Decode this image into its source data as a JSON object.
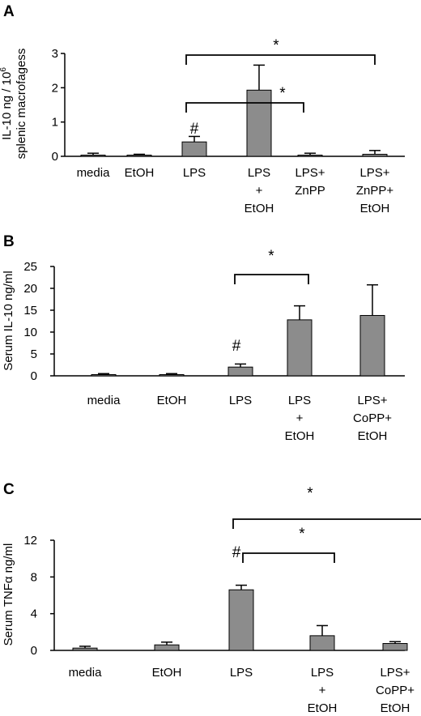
{
  "colors": {
    "bar": "#8c8c8c",
    "ink": "#000000",
    "background": "#ffffff"
  },
  "chart_data": [
    {
      "panel": "A",
      "type": "bar",
      "ylabel": [
        "IL-10  ng / 10",
        "6",
        "splenic macrofagess"
      ],
      "ylim": [
        0,
        3
      ],
      "yticks": [
        "0",
        "1",
        "2",
        "3"
      ],
      "categories": [
        [
          "media"
        ],
        [
          "EtOH"
        ],
        [
          "LPS"
        ],
        [
          "LPS",
          "+",
          "EtOH"
        ],
        [
          "LPS+",
          "ZnPP"
        ],
        [
          "LPS+",
          "ZnPP+",
          "EtOH"
        ]
      ],
      "values": [
        0.03,
        0.03,
        0.42,
        1.93,
        0.03,
        0.06
      ],
      "errors": [
        0.06,
        0.03,
        0.16,
        0.73,
        0.06,
        0.11
      ],
      "markers": [
        {
          "text": "#",
          "index": 2
        }
      ],
      "significance": [
        {
          "label": "*",
          "from": 2,
          "to": 5
        },
        {
          "label": "*",
          "from": 2,
          "to": 4
        }
      ]
    },
    {
      "panel": "B",
      "type": "bar",
      "ylabel": [
        "Serum IL-10 ng/ml"
      ],
      "ylim": [
        0,
        25
      ],
      "yticks": [
        "0",
        "5",
        "10",
        "15",
        "20",
        "25"
      ],
      "categories": [
        [
          "media"
        ],
        [
          "EtOH"
        ],
        [
          "LPS"
        ],
        [
          "LPS",
          "+",
          "EtOH"
        ],
        [
          "LPS+",
          "CoPP+",
          "EtOH"
        ]
      ],
      "values": [
        0,
        0,
        2,
        12.8,
        13.8
      ],
      "errors": [
        0.5,
        0.5,
        0.7,
        3.2,
        7.0
      ],
      "markers": [
        {
          "text": "#",
          "index": 2
        }
      ],
      "significance": [
        {
          "label": "*",
          "from": 2,
          "to": 3
        }
      ]
    },
    {
      "panel": "C",
      "type": "bar",
      "ylabel": [
        "Serum TNF",
        "α",
        "  ng/ml"
      ],
      "ylim": [
        0,
        12
      ],
      "yticks": [
        "0",
        "4",
        "8",
        "12"
      ],
      "categories": [
        [
          "media"
        ],
        [
          "EtOH"
        ],
        [
          "LPS"
        ],
        [
          "LPS",
          "+",
          "EtOH"
        ],
        [
          "LPS+",
          "CoPP+",
          "EtOH"
        ]
      ],
      "values": [
        0.25,
        0.6,
        6.6,
        1.6,
        0.75
      ],
      "errors": [
        0.2,
        0.3,
        0.5,
        1.1,
        0.2
      ],
      "markers": [
        {
          "text": "#",
          "index": 2
        }
      ],
      "significance": [
        {
          "label": "*",
          "from": 2,
          "to": 4
        },
        {
          "label": "*",
          "from": 2,
          "to": 3
        }
      ]
    }
  ]
}
